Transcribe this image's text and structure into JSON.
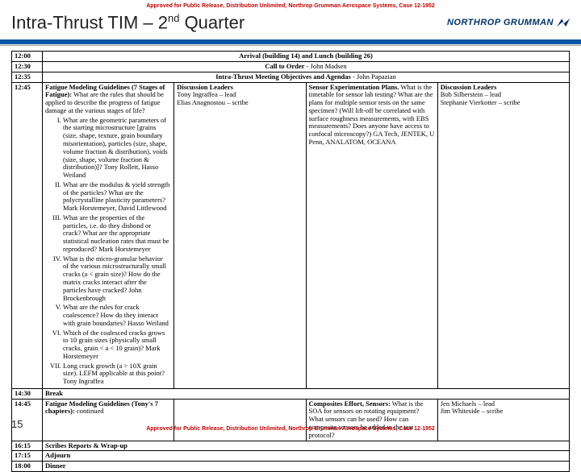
{
  "approval": "Approved for Public Release, Distribution Unlimited, Northrop Grumman Aerospace Systems, Case 12-1952",
  "title_pre": "Intra-Thrust TIM – 2",
  "title_sup": "nd",
  "title_post": " Quarter",
  "logo_text": "NORTHROP GRUMMAN",
  "page_num": "15",
  "rows": {
    "r1_time": "12:00",
    "r1_text": "Arrival (building 14) and Lunch (building 26)",
    "r2_time": "12:30",
    "r2_text_a": "Call to Order",
    "r2_text_b": " - John Madsen",
    "r3_time": "12:35",
    "r3_text_a": "Intra-Thrust Meeting Objectives and Agendas",
    "r3_text_b": " - John Papazian",
    "r4_time": "12:45",
    "r4_left_head": "Fatigue Modeling Guidelines (7 Stages of Fatigue):",
    "r4_left_q": "  What are the rules that should be applied to describe the progress of fatigue damage at the various stages of life?",
    "r4_li1": "What are the geometric parameters of the starting microstructure [grains (size, shape, texture, grain boundary misorientation), particles (size, shape, volume fraction & distribution), voids (size, shape, volume fraction & distribution)]? Tony Rollett, Hasso Weiland",
    "r4_li2": "What are the modulus & yield strength of the particles? What are the polycrystalline plasticity parameters? Mark Horstemeyer, David Littlewood",
    "r4_li3": "What are the properties of the particles, i.e. do they disbond or crack? What are the appropriate statistical nucleation rates that must be reproduced? Mark Horstemeyer",
    "r4_li4": "What is the micro-granular behavior of the various microstructurally small cracks (a < grain size)? How do the matrix cracks interact after the particles have cracked? John Brockenbrough",
    "r4_li5": "What are the rules for crack coalescence? How do they interact with grain boundaries? Hasso Weiland",
    "r4_li6": "Which of the coalesced cracks grows to 10 grain sizes (physically small cracks, grain < a < 10 grain)? Mark Horstemeyer",
    "r4_li7": "Long crack growth (a > 10X grain size). LEFM applicable at this point? Tony Ingraffea",
    "r4_leaders_h": "Discussion Leaders",
    "r4_leaders": "Tony Ingraffea – lead\nElias Anagnostou – scribe",
    "r4_right_head": "Sensor Experimentation Plans.",
    "r4_right_body": "What is the timetable for sensor lab testing? What are the plans for multiple sensor tests on the same specimen? (Will lift-off be correlated with surface roughness measurements, with EBS measurements? Does anyone have access to confocal microscopy?) GA Tech, JENTEK, U Penn, ANALATOM, OCEANA",
    "r4_rleaders_h": "Discussion Leaders",
    "r4_rleaders": "Bob Silberstein – lead\nStephanie Vierkotter – scribe",
    "r5_time": "14:30",
    "r5_text": "Break",
    "r6_time": "14:45",
    "r6_left_a": "Fatigue Modeling Guidelines (Tony's 7 chapters):",
    "r6_left_b": " continued",
    "r6_right_head": "Composites Effort, Sensors:",
    "r6_right_body": " What is the SOA for sensors on rotating equipment? What sensors can be used? How can composite sensors be added to the test protocol?",
    "r6_rleaders": "Jen Michaels – lead\nJim Whiteside – scribe",
    "r7_time": "16:15",
    "r7_text": "Scribes Reports & Wrap-up",
    "r8_time": "17:15",
    "r8_text": "Adjourn",
    "r9_time": "18:00",
    "r9_text": "Dinner"
  }
}
